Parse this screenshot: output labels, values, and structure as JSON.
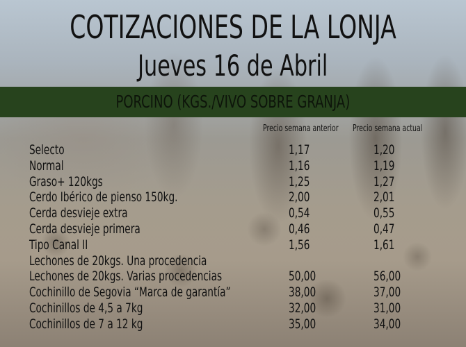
{
  "title": "COTIZACIONES DE LA LONJA",
  "date": "Jueves 16 de Abril",
  "section": "PORCINO (KGS./VIVO SOBRE GRANJA)",
  "columns": [
    "Precio semana anterior",
    "Precio semana actual"
  ],
  "rows": [
    {
      "label": "Selecto",
      "prev": "1,17",
      "curr": "1,20"
    },
    {
      "label": "Normal",
      "prev": "1,16",
      "curr": "1,19"
    },
    {
      "label": "Graso+ 120kgs",
      "prev": "1,25",
      "curr": "1,27"
    },
    {
      "label": "Cerdo Ibérico de pienso 150kg.",
      "prev": "2,00",
      "curr": "2,01"
    },
    {
      "label": "Cerda desvieje extra",
      "prev": "0,54",
      "curr": "0,55"
    },
    {
      "label": "Cerda desvieje primera",
      "prev": "0,46",
      "curr": "0,47"
    },
    {
      "label": "Tipo Canal II",
      "prev": "1,56",
      "curr": "1,61"
    },
    {
      "label": "Lechones de 20kgs. Una procedencia",
      "prev": "",
      "curr": ""
    },
    {
      "label": "Lechones de 20kgs. Varias procedencias",
      "prev": "50,00",
      "curr": "56,00"
    },
    {
      "label": "Cochinillo de Segovia “Marca de garantía”",
      "prev": "38,00",
      "curr": "37,00"
    },
    {
      "label": "Cochinillos de 4,5 a 7kg",
      "prev": "32,00",
      "curr": "31,00"
    },
    {
      "label": "Cochinillos de 7 a 12 kg",
      "prev": "35,00",
      "curr": "34,00"
    }
  ],
  "colors": {
    "band": "#27431d",
    "text": "#111111"
  }
}
